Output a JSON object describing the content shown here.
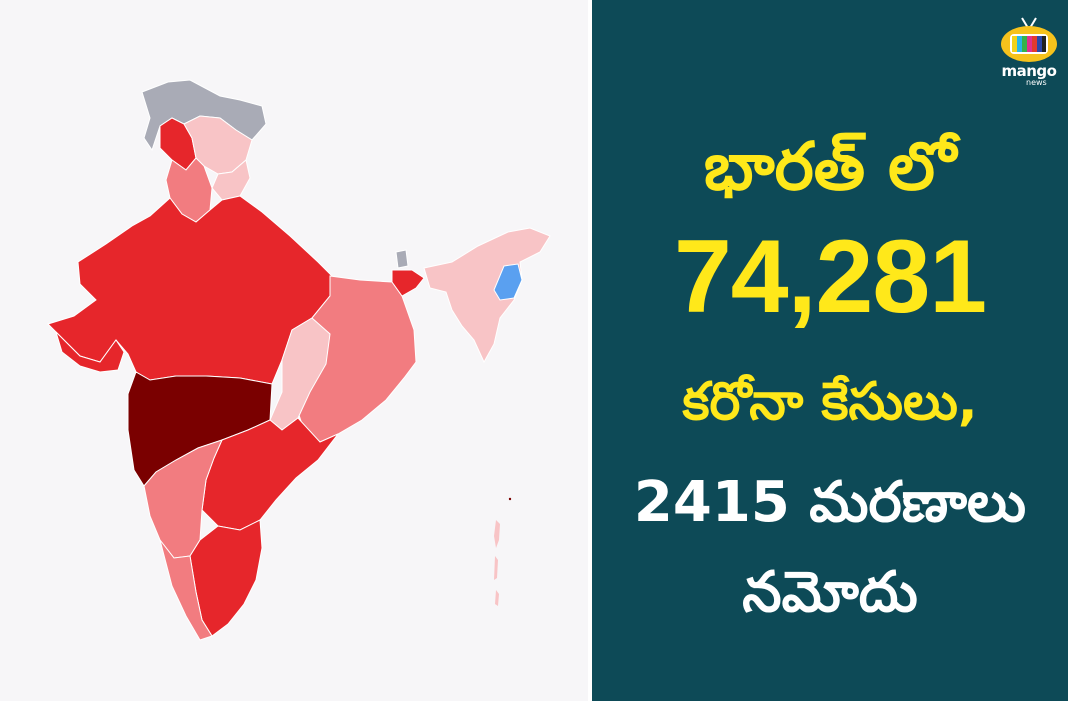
{
  "headline": {
    "line1": "భారత్ లో",
    "line2": "74,281",
    "line3": "కరోనా కేసులు,",
    "line4": "2415 మరణాలు",
    "line5": "నమోదు"
  },
  "logo": {
    "word": "mango",
    "sub": "news"
  },
  "colors": {
    "panel_bg": "#0d4a57",
    "headline_yellow": "#ffe81a",
    "headline_white": "#ffffff",
    "map_bg": "#f7f6f8",
    "region_darkest": "#7a0000",
    "region_dark": "#e6262b",
    "region_medium": "#f27c80",
    "region_light": "#f8c4c6",
    "region_grey": "#a9abb6",
    "region_blue": "#5aa0f0"
  },
  "icons": [
    "india-map",
    "mango-tv-logo-icon"
  ]
}
